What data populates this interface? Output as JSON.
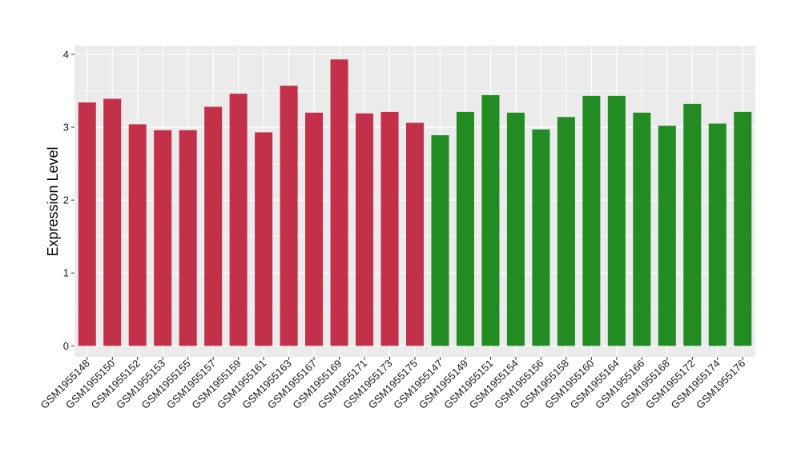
{
  "chart_data": {
    "type": "bar",
    "title": "",
    "xlabel": "",
    "ylabel": "Expression Level",
    "ylim": [
      -0.15,
      4.12
    ],
    "yticks": [
      0,
      1,
      2,
      3,
      4
    ],
    "grid": true,
    "legend": "none",
    "panel_background": "#ebebeb",
    "gridline_color": "#ffffff",
    "categories": [
      "GSM1955148",
      "GSM1955150",
      "GSM1955152",
      "GSM1955153",
      "GSM1955155",
      "GSM1955157",
      "GSM1955159",
      "GSM1955161",
      "GSM1955163",
      "GSM1955167",
      "GSM1955169",
      "GSM1955171",
      "GSM1955173",
      "GSM1955175",
      "GSM1955147",
      "GSM1955149",
      "GSM1955151",
      "GSM1955154",
      "GSM1955156",
      "GSM1955158",
      "GSM1955160",
      "GSM1955164",
      "GSM1955166",
      "GSM1955168",
      "GSM1955172",
      "GSM1955174",
      "GSM1955176"
    ],
    "values": [
      3.34,
      3.39,
      3.04,
      2.96,
      2.96,
      3.28,
      3.46,
      2.93,
      3.57,
      3.2,
      3.93,
      3.19,
      3.21,
      3.06,
      2.89,
      3.21,
      3.44,
      3.2,
      2.97,
      3.14,
      3.43,
      3.43,
      3.2,
      3.02,
      3.32,
      3.05,
      3.21
    ],
    "groups": [
      0,
      0,
      0,
      0,
      0,
      0,
      0,
      0,
      0,
      0,
      0,
      0,
      0,
      0,
      1,
      1,
      1,
      1,
      1,
      1,
      1,
      1,
      1,
      1,
      1,
      1,
      1
    ],
    "group_colors": [
      "#c3304a",
      "#228b22"
    ]
  }
}
